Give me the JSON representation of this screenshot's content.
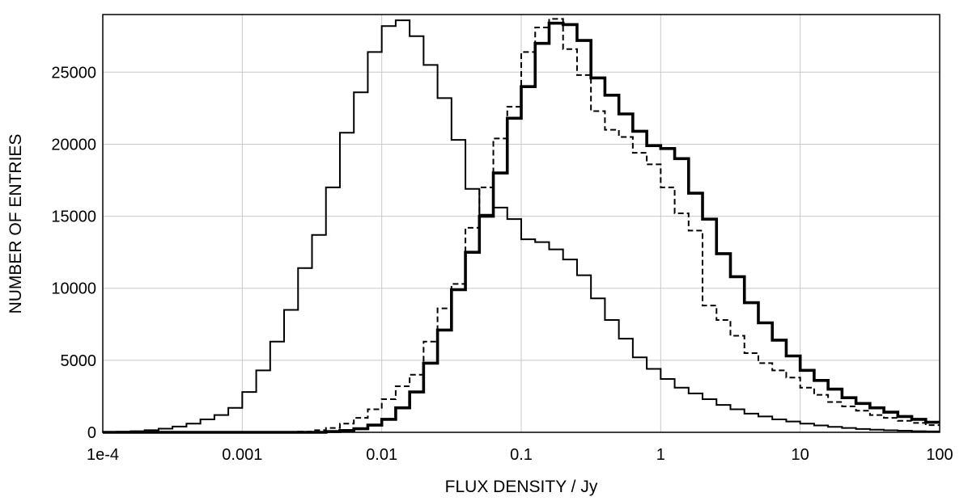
{
  "chart_data": {
    "type": "step",
    "xlabel": "FLUX DENSITY / Jy",
    "ylabel": "NUMBER OF ENTRIES",
    "x_scale": "log",
    "xlim": [
      0.0001,
      100
    ],
    "ylim": [
      0,
      29000
    ],
    "grid": true,
    "x_ticks": [
      0.0001,
      0.001,
      0.01,
      0.1,
      1,
      10,
      100
    ],
    "x_tick_labels": [
      "1e-4",
      "0.001",
      "0.01",
      "0.1",
      "1",
      "10",
      "100"
    ],
    "y_ticks": [
      0,
      5000,
      10000,
      15000,
      20000,
      25000
    ],
    "y_tick_labels": [
      "0",
      "5000",
      "10000",
      "15000",
      "20000",
      "25000"
    ],
    "series": [
      {
        "style": "thin-solid",
        "x_edges": [
          0.0001,
          0.0001259,
          0.0001585,
          0.0001995,
          0.0002512,
          0.0003162,
          0.0003981,
          0.0005012,
          0.000631,
          0.0007943,
          0.001,
          0.001259,
          0.001585,
          0.001995,
          0.002512,
          0.003162,
          0.003981,
          0.005012,
          0.00631,
          0.007943,
          0.01,
          0.01259,
          0.01585,
          0.01995,
          0.02512,
          0.03162,
          0.03981,
          0.05012,
          0.0631,
          0.07943,
          0.1,
          0.1259,
          0.1585,
          0.1995,
          0.2512,
          0.3162,
          0.3981,
          0.5012,
          0.631,
          0.7943,
          1,
          1.259,
          1.585,
          1.995,
          2.512,
          3.162,
          3.981,
          5.012,
          6.31,
          7.943,
          10,
          12.59,
          15.85,
          19.95,
          25.12,
          31.62,
          39.81,
          50.12,
          63.1,
          79.43,
          100
        ],
        "values": [
          20,
          40,
          80,
          150,
          250,
          400,
          600,
          900,
          1200,
          1700,
          2800,
          4300,
          6300,
          8500,
          11400,
          13700,
          17000,
          20800,
          23600,
          26400,
          28200,
          28600,
          27500,
          25500,
          23200,
          20300,
          16900,
          15100,
          15600,
          14800,
          13400,
          13200,
          12700,
          12000,
          10900,
          9300,
          7800,
          6500,
          5200,
          4400,
          3700,
          3100,
          2700,
          2300,
          1900,
          1600,
          1300,
          1100,
          900,
          750,
          600,
          480,
          380,
          300,
          230,
          180,
          140,
          110,
          80,
          60
        ]
      },
      {
        "style": "dashed",
        "x_edges": [
          0.0001,
          0.0001259,
          0.0001585,
          0.0001995,
          0.0002512,
          0.0003162,
          0.0003981,
          0.0005012,
          0.000631,
          0.0007943,
          0.001,
          0.001259,
          0.001585,
          0.001995,
          0.002512,
          0.003162,
          0.003981,
          0.005012,
          0.00631,
          0.007943,
          0.01,
          0.01259,
          0.01585,
          0.01995,
          0.02512,
          0.03162,
          0.03981,
          0.05012,
          0.0631,
          0.07943,
          0.1,
          0.1259,
          0.1585,
          0.1995,
          0.2512,
          0.3162,
          0.3981,
          0.5012,
          0.631,
          0.7943,
          1,
          1.259,
          1.585,
          1.995,
          2.512,
          3.162,
          3.981,
          5.012,
          6.31,
          7.943,
          10,
          12.59,
          15.85,
          19.95,
          25.12,
          31.62,
          39.81,
          50.12,
          63.1,
          79.43,
          100
        ],
        "values": [
          0,
          0,
          0,
          0,
          0,
          0,
          0,
          0,
          0,
          0,
          0,
          0,
          0,
          0,
          50,
          150,
          300,
          600,
          1000,
          1600,
          2300,
          3200,
          4000,
          6300,
          8600,
          10300,
          14200,
          17000,
          20400,
          22600,
          26400,
          28100,
          28700,
          26600,
          24800,
          22300,
          21000,
          20500,
          19400,
          18600,
          17000,
          15200,
          14000,
          8800,
          7800,
          6700,
          5500,
          4800,
          4300,
          3800,
          3100,
          2600,
          2100,
          1800,
          1500,
          1200,
          1000,
          800,
          650,
          500
        ]
      },
      {
        "style": "thick-solid",
        "x_edges": [
          0.0001,
          0.0001259,
          0.0001585,
          0.0001995,
          0.0002512,
          0.0003162,
          0.0003981,
          0.0005012,
          0.000631,
          0.0007943,
          0.001,
          0.001259,
          0.001585,
          0.001995,
          0.002512,
          0.003162,
          0.003981,
          0.005012,
          0.00631,
          0.007943,
          0.01,
          0.01259,
          0.01585,
          0.01995,
          0.02512,
          0.03162,
          0.03981,
          0.05012,
          0.0631,
          0.07943,
          0.1,
          0.1259,
          0.1585,
          0.1995,
          0.2512,
          0.3162,
          0.3981,
          0.5012,
          0.631,
          0.7943,
          1,
          1.259,
          1.585,
          1.995,
          2.512,
          3.162,
          3.981,
          5.012,
          6.31,
          7.943,
          10,
          12.59,
          15.85,
          19.95,
          25.12,
          31.62,
          39.81,
          50.12,
          63.1,
          79.43,
          100
        ],
        "values": [
          0,
          0,
          0,
          0,
          0,
          0,
          0,
          0,
          0,
          0,
          0,
          0,
          0,
          0,
          0,
          0,
          50,
          120,
          250,
          500,
          900,
          1700,
          2800,
          4800,
          7100,
          9900,
          12500,
          15000,
          18000,
          21800,
          24000,
          27000,
          28400,
          28300,
          27200,
          24600,
          23400,
          22100,
          20900,
          19900,
          19700,
          19000,
          16600,
          14800,
          12400,
          10800,
          9000,
          7600,
          6400,
          5300,
          4300,
          3600,
          3000,
          2400,
          2000,
          1700,
          1400,
          1100,
          900,
          700
        ]
      }
    ]
  }
}
